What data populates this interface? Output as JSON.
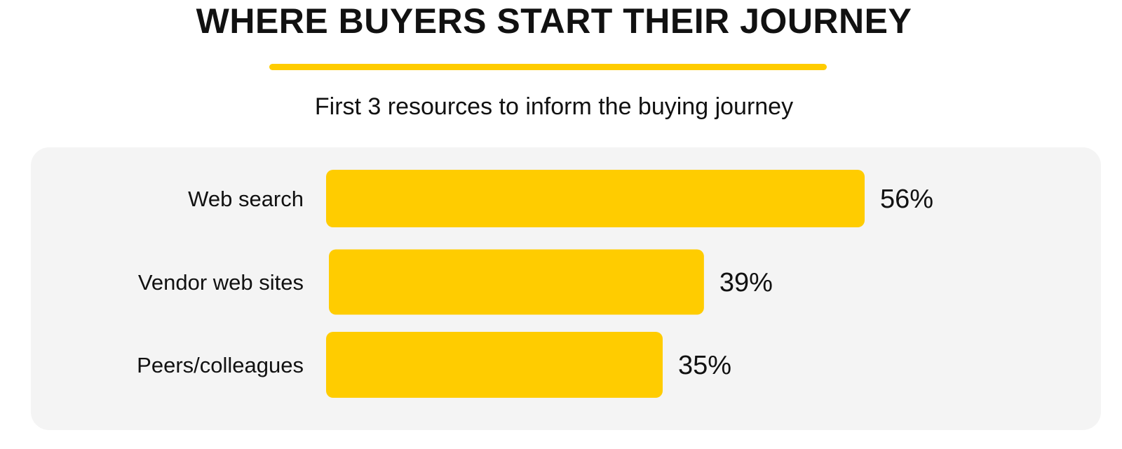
{
  "header": {
    "title": "WHERE BUYERS START THEIR JOURNEY",
    "subtitle": "First 3 resources to inform the buying journey"
  },
  "colors": {
    "accent": "#FFCC00",
    "panel_background": "#F4F4F4",
    "text": "#111111"
  },
  "chart_data": {
    "type": "bar",
    "orientation": "horizontal",
    "title": "WHERE BUYERS START THEIR JOURNEY",
    "subtitle": "First 3 resources to inform the buying journey",
    "categories": [
      "Web search",
      "Vendor web sites",
      "Peers/colleagues"
    ],
    "values": [
      56,
      39,
      35
    ],
    "value_labels": [
      "56%",
      "39%",
      "35%"
    ],
    "unit": "%",
    "xlim": [
      0,
      56
    ],
    "grid": false,
    "legend": "none"
  }
}
